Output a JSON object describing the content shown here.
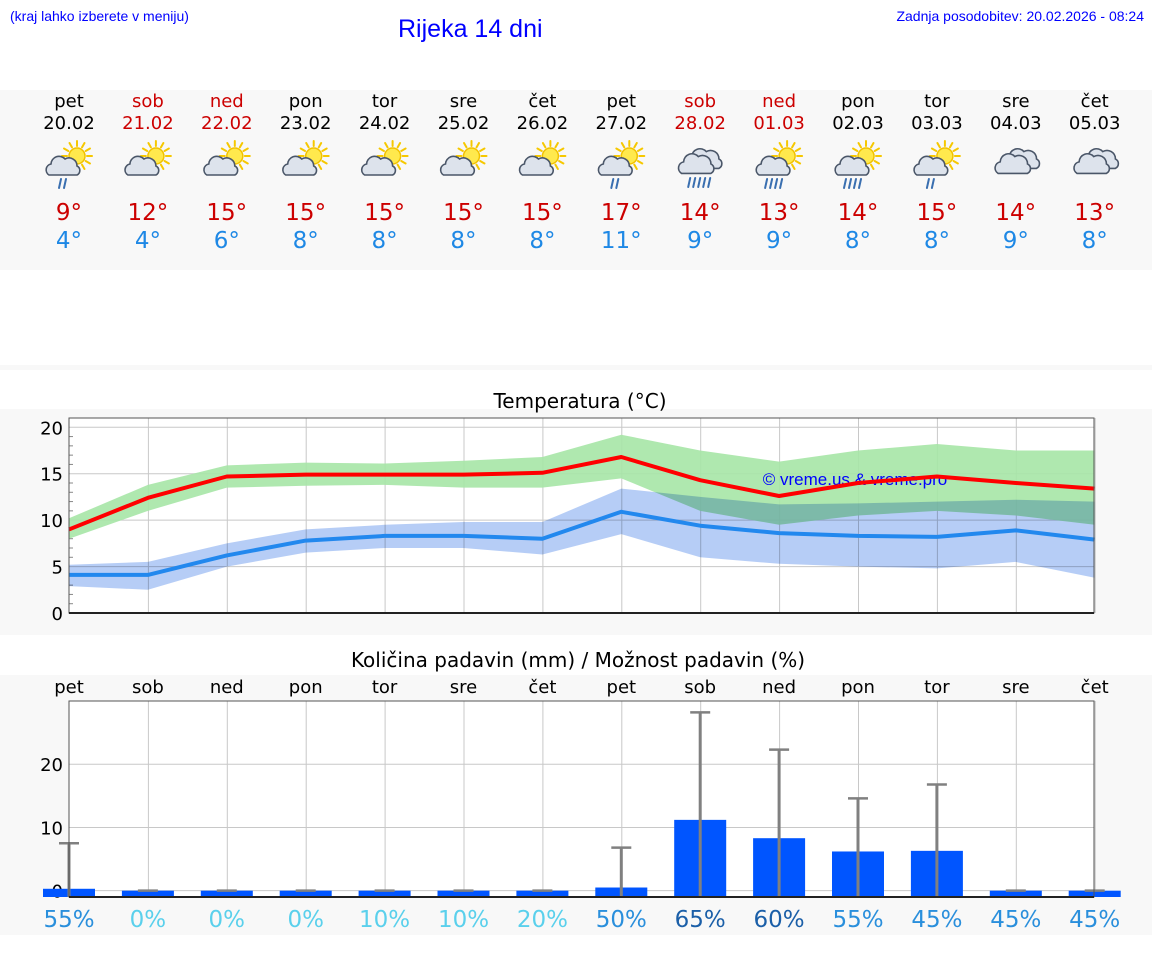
{
  "header": {
    "hint": "(kraj lahko izberete v meniju)",
    "title": "Rijeka 14 dni",
    "updated": "Zadnja posodobitev: 20.02.2026 - 08:24"
  },
  "colors": {
    "weekday": "#000000",
    "weekend": "#cc0000",
    "tmax": "#cc0000",
    "tmin": "#1e88e5",
    "tmax_line": "#ff0000",
    "tmin_line": "#2288ee",
    "tmax_band": "#a6e6a6",
    "tmin_band": "#a9c4f5",
    "bar": "#0055ff",
    "whisker": "#808080",
    "watermark": "#0000ff"
  },
  "days": [
    {
      "dow": "pet",
      "date": "20.02",
      "weekend": false,
      "icon": "sun-cloud-drizzle-icon",
      "tmax": "9°",
      "tmin": "4°"
    },
    {
      "dow": "sob",
      "date": "21.02",
      "weekend": true,
      "icon": "sun-cloud-icon",
      "tmax": "12°",
      "tmin": "4°"
    },
    {
      "dow": "ned",
      "date": "22.02",
      "weekend": true,
      "icon": "sun-cloud-icon",
      "tmax": "15°",
      "tmin": "6°"
    },
    {
      "dow": "pon",
      "date": "23.02",
      "weekend": false,
      "icon": "sun-cloud-icon",
      "tmax": "15°",
      "tmin": "8°"
    },
    {
      "dow": "tor",
      "date": "24.02",
      "weekend": false,
      "icon": "sun-cloud-icon",
      "tmax": "15°",
      "tmin": "8°"
    },
    {
      "dow": "sre",
      "date": "25.02",
      "weekend": false,
      "icon": "sun-cloud-icon",
      "tmax": "15°",
      "tmin": "8°"
    },
    {
      "dow": "čet",
      "date": "26.02",
      "weekend": false,
      "icon": "sun-cloud-icon",
      "tmax": "15°",
      "tmin": "8°"
    },
    {
      "dow": "pet",
      "date": "27.02",
      "weekend": false,
      "icon": "sun-cloud-drizzle-icon",
      "tmax": "17°",
      "tmin": "11°"
    },
    {
      "dow": "sob",
      "date": "28.02",
      "weekend": true,
      "icon": "cloud-rain-icon",
      "tmax": "14°",
      "tmin": "9°"
    },
    {
      "dow": "ned",
      "date": "01.03",
      "weekend": true,
      "icon": "sun-cloud-rain-icon",
      "tmax": "13°",
      "tmin": "9°"
    },
    {
      "dow": "pon",
      "date": "02.03",
      "weekend": false,
      "icon": "sun-cloud-rain-icon",
      "tmax": "14°",
      "tmin": "8°"
    },
    {
      "dow": "tor",
      "date": "03.03",
      "weekend": false,
      "icon": "sun-cloud-drizzle-icon",
      "tmax": "15°",
      "tmin": "8°"
    },
    {
      "dow": "sre",
      "date": "04.03",
      "weekend": false,
      "icon": "cloud-icon",
      "tmax": "14°",
      "tmin": "9°"
    },
    {
      "dow": "čet",
      "date": "05.03",
      "weekend": false,
      "icon": "cloud-icon",
      "tmax": "13°",
      "tmin": "8°"
    }
  ],
  "chart_data": [
    {
      "type": "line",
      "title": "Temperatura (°C)",
      "ylim": [
        0,
        21
      ],
      "yticks": [
        "0",
        "5",
        "10",
        "15",
        "20"
      ],
      "grid": true,
      "watermark": "© vreme.us & vreme.pro",
      "x": [
        0,
        1,
        2,
        3,
        4,
        5,
        6,
        7,
        8,
        9,
        10,
        11,
        12,
        13
      ],
      "series": [
        {
          "name": "max",
          "values": [
            9.0,
            12.4,
            14.7,
            14.9,
            14.9,
            14.9,
            15.1,
            16.8,
            14.3,
            12.6,
            14.0,
            14.7,
            14.0,
            13.4
          ],
          "band_low": [
            8.0,
            11.0,
            13.5,
            13.7,
            13.8,
            13.5,
            13.5,
            14.5,
            11.0,
            9.5,
            10.5,
            11.0,
            10.5,
            9.5
          ],
          "band_high": [
            10.2,
            13.8,
            15.9,
            16.2,
            16.1,
            16.4,
            16.8,
            19.2,
            17.5,
            16.3,
            17.5,
            18.2,
            17.5,
            17.5
          ]
        },
        {
          "name": "min",
          "values": [
            4.1,
            4.1,
            6.2,
            7.8,
            8.3,
            8.3,
            8.0,
            10.9,
            9.4,
            8.6,
            8.3,
            8.2,
            8.9,
            7.9
          ],
          "band_low": [
            2.9,
            2.5,
            5.0,
            6.5,
            7.0,
            7.0,
            6.3,
            8.5,
            6.0,
            5.3,
            5.0,
            4.8,
            5.5,
            3.8
          ],
          "band_high": [
            5.2,
            5.5,
            7.5,
            9.0,
            9.5,
            9.8,
            9.8,
            13.4,
            12.5,
            11.7,
            11.8,
            12.0,
            12.2,
            12.0
          ]
        }
      ]
    },
    {
      "type": "bar",
      "title": "Količina padavin (mm) / Možnost padavin (%)",
      "ylim": [
        -1,
        30
      ],
      "yticks": [
        "0",
        "10",
        "20"
      ],
      "categories": [
        "pet",
        "sob",
        "ned",
        "pon",
        "tor",
        "sre",
        "čet",
        "pet",
        "sob",
        "ned",
        "pon",
        "tor",
        "sre",
        "čet"
      ],
      "values": [
        0.3,
        0,
        0,
        0,
        0,
        0,
        0,
        0.5,
        11.2,
        8.3,
        6.2,
        6.3,
        0,
        0
      ],
      "max_values": [
        7.5,
        0,
        0,
        0,
        0,
        0,
        0,
        6.8,
        28.2,
        22.3,
        14.6,
        16.8,
        0,
        0
      ],
      "probability": [
        "55%",
        "0%",
        "0%",
        "0%",
        "10%",
        "10%",
        "20%",
        "50%",
        "65%",
        "60%",
        "55%",
        "45%",
        "45%",
        "45%"
      ]
    }
  ]
}
